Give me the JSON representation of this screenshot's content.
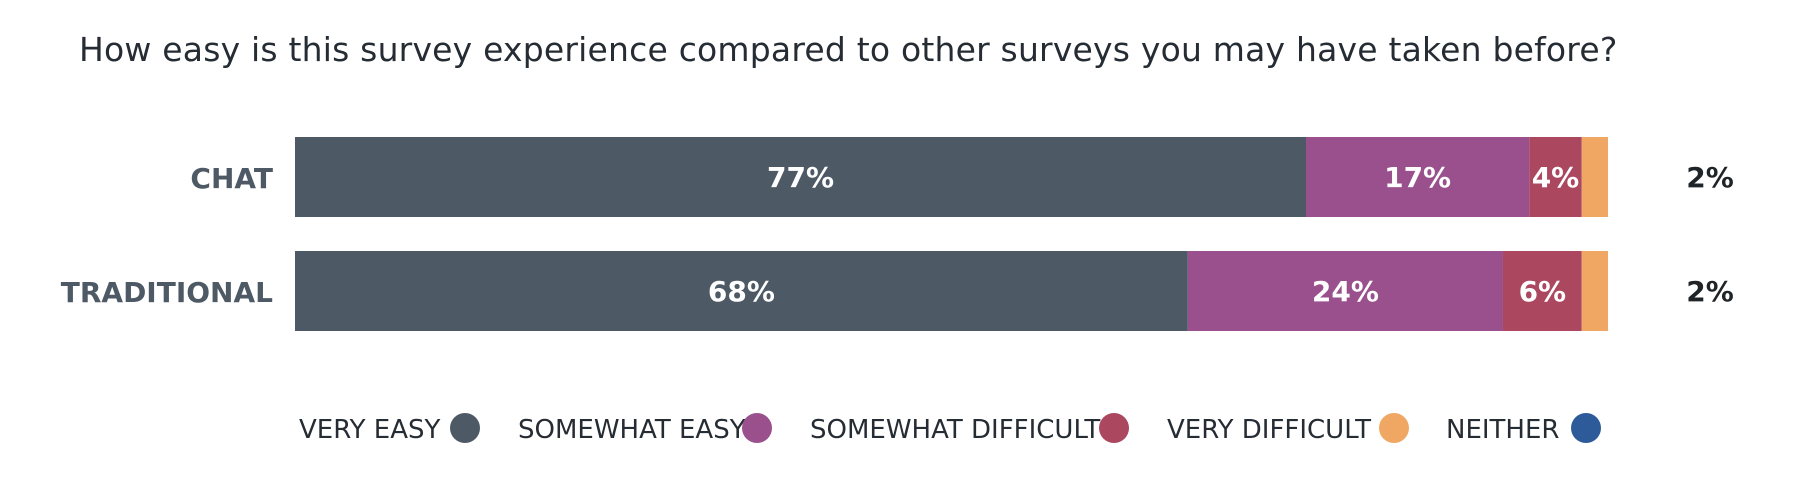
{
  "chart_data": {
    "type": "bar",
    "orientation": "horizontal",
    "stacked": true,
    "title": "How easy is this survey experience compared to other surveys you may have taken before?",
    "categories": [
      "CHAT",
      "TRADITIONAL"
    ],
    "series": [
      {
        "name": "VERY EASY",
        "values": [
          77,
          68
        ],
        "labels": [
          "77%",
          "68%"
        ],
        "color": "#4d5a66",
        "icon": "dark-slate-dot-icon"
      },
      {
        "name": "SOMEWHAT EASY",
        "values": [
          17,
          24
        ],
        "labels": [
          "17%",
          "24%"
        ],
        "color": "#9a508c",
        "icon": "purple-dot-icon"
      },
      {
        "name": "SOMEWHAT DIFFICULT",
        "values": [
          4,
          6
        ],
        "labels": [
          "4%",
          "6%"
        ],
        "color": "#ac4760",
        "icon": "crimson-dot-icon"
      },
      {
        "name": "VERY DIFFICULT",
        "values": [
          2,
          2
        ],
        "labels": [
          "2%",
          "2%"
        ],
        "color": "#f0a764",
        "icon": "orange-dot-icon"
      },
      {
        "name": "NEITHER",
        "values": [
          0,
          0
        ],
        "labels": [
          "",
          ""
        ],
        "color": "#2d5b9a",
        "icon": "blue-dot-icon"
      }
    ],
    "xlim": [
      0,
      100
    ],
    "grid": false,
    "legend_position": "bottom"
  }
}
